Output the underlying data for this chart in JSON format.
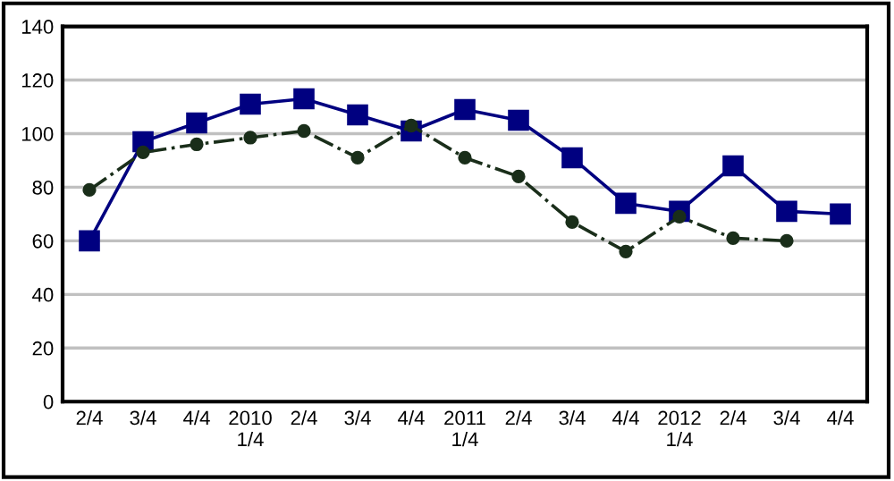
{
  "chart_data": {
    "type": "line",
    "categories": [
      "2/4",
      "3/4",
      "4/4",
      "2010\n1/4",
      "2/4",
      "3/4",
      "4/4",
      "2011\n1/4",
      "2/4",
      "3/4",
      "4/4",
      "2012\n1/4",
      "2/4",
      "3/4",
      "4/4"
    ],
    "series": [
      {
        "color": "#000080",
        "marker": "square",
        "line_style": "solid",
        "values": [
          60,
          97,
          104,
          111,
          113,
          107,
          101,
          109,
          105,
          91,
          74,
          71,
          88,
          71,
          70
        ]
      },
      {
        "color": "#1a2e1a",
        "marker": "circle",
        "line_style": "dashdot",
        "values": [
          79,
          93,
          96,
          98.5,
          101,
          91,
          103,
          91,
          84,
          67,
          56,
          69,
          61,
          60,
          null
        ]
      }
    ],
    "ylim": [
      0,
      140
    ],
    "yticks": [
      0,
      20,
      40,
      60,
      80,
      100,
      120,
      140
    ],
    "grid": "y",
    "legend": false
  }
}
